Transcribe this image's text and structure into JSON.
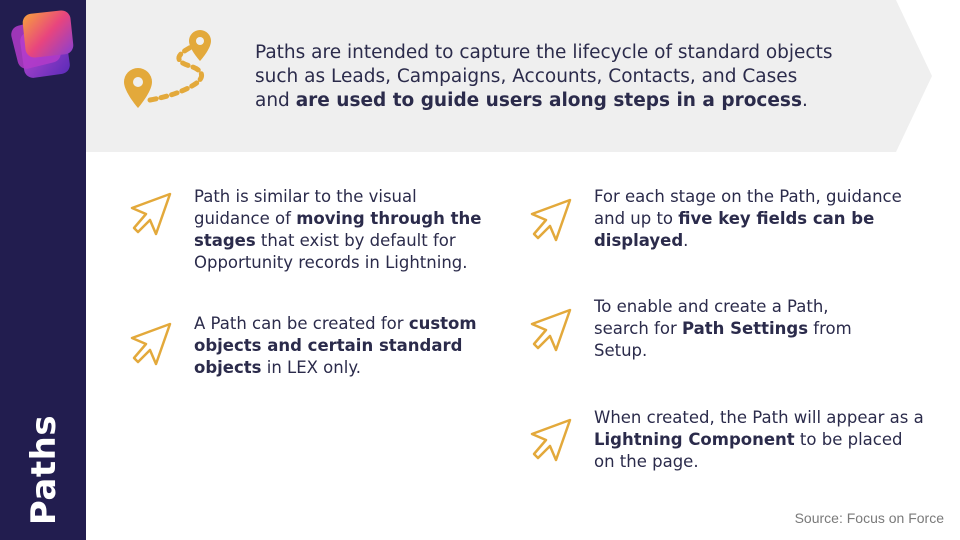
{
  "sidebar": {
    "title": "Paths"
  },
  "intro": {
    "line1": "Paths are intended to capture the lifecycle of standard objects",
    "line2": "such as Leads, Campaigns, Accounts, Contacts, and Cases",
    "line3_prefix": "and ",
    "line3_bold": "are used to guide users along steps in a process",
    "line3_suffix": "."
  },
  "left_items": [
    {
      "p1": "Path is similar to the visual guidance of ",
      "b1": "moving through the stages",
      "p2": " that exist by default for Opportunity records in Lightning."
    },
    {
      "p1": "A Path can be created for ",
      "b1": "custom objects and certain standard objects",
      "p2": " in LEX only."
    }
  ],
  "right_items": [
    {
      "p1": "For each stage on the Path, guidance and up to ",
      "b1": "five key fields can be displayed",
      "p2": "."
    },
    {
      "p1": "To enable and create a Path, search for ",
      "b1": "Path Settings",
      "p2": " from Setup."
    },
    {
      "p1": "When created, the Path will appear as a ",
      "b1": "Lightning Component",
      "p2": " to be placed on the page."
    }
  ],
  "source": "Source: Focus on Force",
  "colors": {
    "sidebar": "#221d4f",
    "banner": "#efefef",
    "accent_gold": "#e3a93b",
    "text": "#2b2b4b"
  },
  "icons": [
    "logo-icon",
    "map-pins-icon",
    "cursor-arrow-icon"
  ]
}
